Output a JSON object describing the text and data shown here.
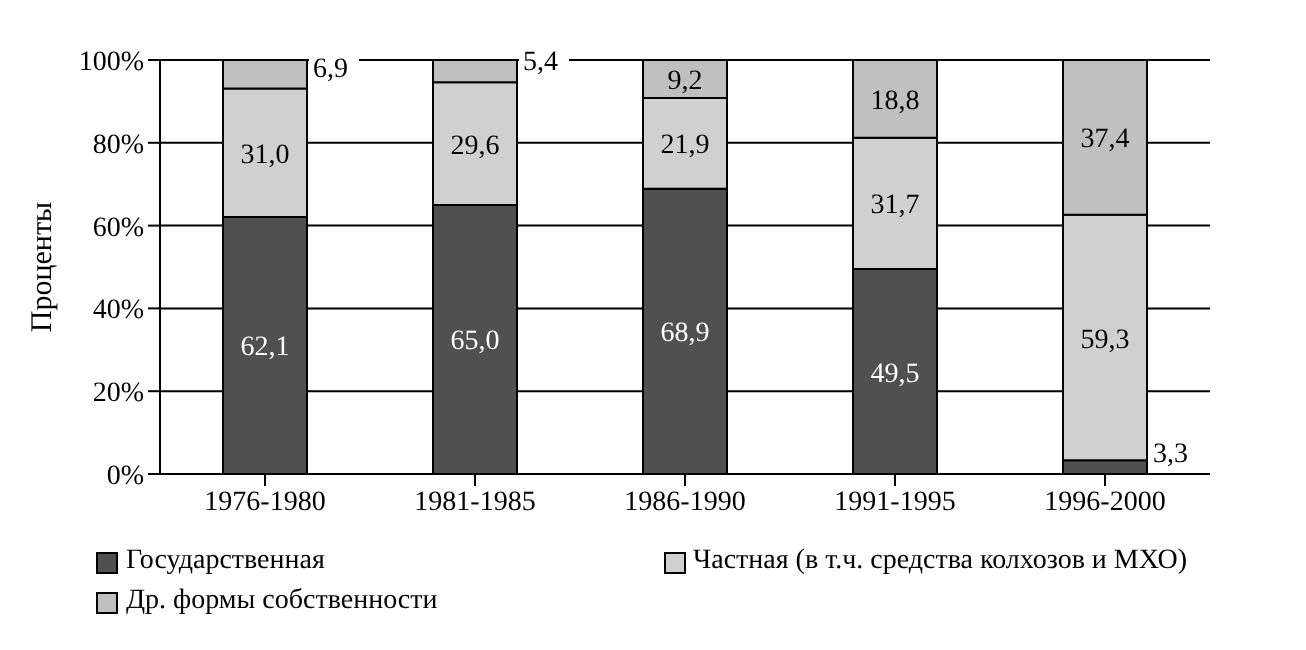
{
  "chart_data": {
    "type": "bar",
    "stacked": true,
    "ylabel": "Проценты",
    "categories": [
      "1976-1980",
      "1981-1985",
      "1986-1990",
      "1991-1995",
      "1996-2000"
    ],
    "series": [
      {
        "name": "Государственная",
        "color": "#505050",
        "values": [
          62.1,
          65.0,
          68.9,
          49.5,
          3.3
        ],
        "value_labels": [
          "62,1",
          "65,0",
          "68,9",
          "49,5",
          "3,3"
        ]
      },
      {
        "name": "Частная (в т.ч. средства колхозов и МХО)",
        "color": "#d0d0d0",
        "values": [
          31.0,
          29.6,
          21.9,
          31.7,
          59.3
        ],
        "value_labels": [
          "31,0",
          "29,6",
          "21,9",
          "31,7",
          "59,3"
        ]
      },
      {
        "name": "Др. формы собственности",
        "color": "#c0c0c0",
        "values": [
          6.9,
          5.4,
          9.2,
          18.8,
          37.4
        ],
        "value_labels": [
          "6,9",
          "5,4",
          "9,2",
          "18,8",
          "37,4"
        ]
      }
    ],
    "ylim": [
      0,
      100
    ],
    "yticks": [
      {
        "value": 0,
        "label": "0%"
      },
      {
        "value": 20,
        "label": "20%"
      },
      {
        "value": 40,
        "label": "40%"
      },
      {
        "value": 60,
        "label": "60%"
      },
      {
        "value": 80,
        "label": "80%"
      },
      {
        "value": 100,
        "label": "100%"
      }
    ],
    "grid": "y",
    "legend": "bottom"
  }
}
